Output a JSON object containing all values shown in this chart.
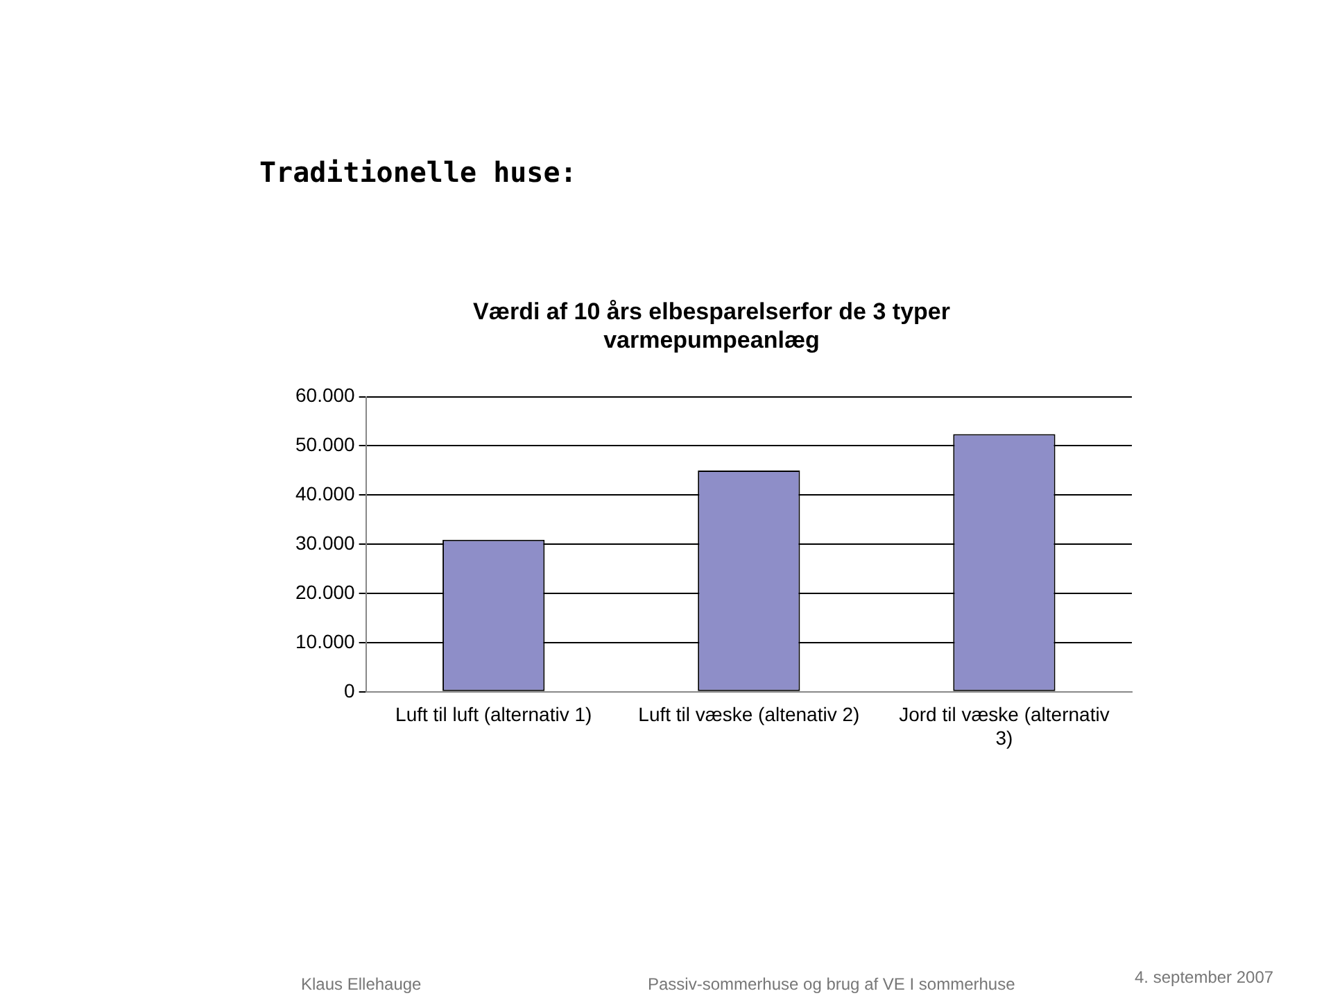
{
  "chart_data": {
    "type": "bar",
    "title": "Værdi af 10 års elbesparelserfor de 3 typer varmepumpeanlæg",
    "categories": [
      "Luft til luft (alternativ 1)",
      "Luft til væske (altenativ 2)",
      "Jord til væske (alternativ 3)"
    ],
    "values": [
      30900,
      45000,
      52400
    ],
    "color": "#8e8ec8",
    "ylim": [
      0,
      60000
    ],
    "yticks": [
      {
        "value": 0,
        "label": "0"
      },
      {
        "value": 10000,
        "label": "10.000"
      },
      {
        "value": 20000,
        "label": "20.000"
      },
      {
        "value": 30000,
        "label": "30.000"
      },
      {
        "value": 40000,
        "label": "40.000"
      },
      {
        "value": 50000,
        "label": "50.000"
      },
      {
        "value": 60000,
        "label": "60.000"
      }
    ],
    "grid": "y",
    "legend": false,
    "annotations": [
      "Traditionelle huse:",
      "Klaus Ellehauge",
      "Passiv-sommerhuse og brug af VE I sommerhuse",
      "4. september 2007"
    ]
  }
}
